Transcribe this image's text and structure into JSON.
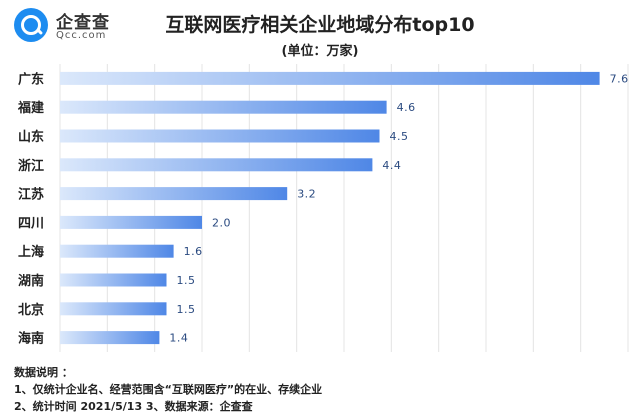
{
  "brand": {
    "name": "企查查",
    "sub": "Qcc.com"
  },
  "header": {
    "title": "互联网医疗相关企业地域分布top10",
    "subtitle": "(单位：万家)"
  },
  "chart_data": {
    "type": "bar",
    "orientation": "horizontal",
    "categories": [
      "广东",
      "福建",
      "山东",
      "浙江",
      "江苏",
      "四川",
      "上海",
      "湖南",
      "北京",
      "海南"
    ],
    "values": [
      7.6,
      4.6,
      4.5,
      4.4,
      3.2,
      2.0,
      1.6,
      1.5,
      1.5,
      1.4
    ],
    "value_labels": [
      "7.6",
      "4.6",
      "4.5",
      "4.4",
      "3.2",
      "2.0",
      "1.6",
      "1.5",
      "1.5",
      "1.4"
    ],
    "xlim": [
      0,
      8
    ],
    "title": "互联网医疗相关企业地域分布top10",
    "subtitle": "(单位：万家)",
    "grid": true,
    "colors": {
      "bar_light": "#dbe8fb",
      "bar_dark": "#4f87e6",
      "grid": "#e4e4e4"
    }
  },
  "notes": {
    "heading": "数据说明 ：",
    "line1": "1、仅统计企业名、经营范围含“互联网医疗”的在业、存续企业",
    "line2": "2、统计时间  2021/5/13     3、数据来源：企查查"
  }
}
